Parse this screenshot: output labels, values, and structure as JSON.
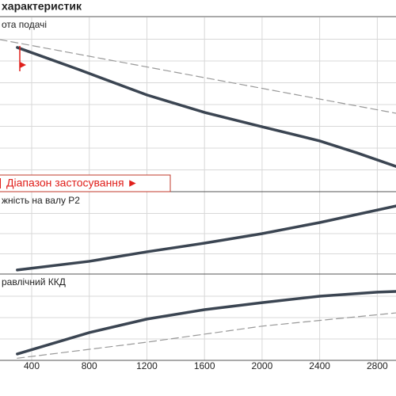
{
  "header": {
    "title": "характеристик"
  },
  "chart_data": [
    {
      "type": "line",
      "title": "ота подачі",
      "annotation": "Діапазон застосування ►",
      "xlim": [
        180,
        2930
      ],
      "ylim": [
        0,
        8
      ],
      "yticks": [
        1,
        2,
        3,
        4,
        5,
        6,
        7
      ],
      "grid": true,
      "series": [
        {
          "color": "#3b4552",
          "style": "solid",
          "x": [
            300,
            730,
            1200,
            1600,
            2000,
            2400,
            2660,
            2930
          ],
          "values": [
            6.62,
            5.6,
            4.44,
            3.64,
            2.98,
            2.33,
            1.78,
            1.16
          ]
        },
        {
          "color": "#999999",
          "style": "dashed",
          "x": [
            180,
            2930
          ],
          "values": [
            6.98,
            3.6
          ]
        }
      ]
    },
    {
      "type": "line",
      "title": "жність на валу P2",
      "xlim": [
        180,
        2930
      ],
      "ylim": [
        0,
        4
      ],
      "yticks": [
        1,
        2,
        3
      ],
      "grid": true,
      "series": [
        {
          "color": "#3b4552",
          "style": "solid",
          "x": [
            300,
            800,
            1200,
            1600,
            2000,
            2400,
            2930
          ],
          "values": [
            0.2,
            0.63,
            1.1,
            1.53,
            2.0,
            2.55,
            3.37
          ]
        }
      ]
    },
    {
      "type": "line",
      "title": "равлічний ККД",
      "xlim": [
        180,
        2930
      ],
      "ylim": [
        0,
        4
      ],
      "yticks": [
        1,
        2,
        3
      ],
      "grid": true,
      "xticks": [
        400,
        800,
        1200,
        1600,
        2000,
        2400,
        2800
      ],
      "series": [
        {
          "color": "#3b4552",
          "style": "solid",
          "x": [
            300,
            800,
            1200,
            1600,
            2000,
            2400,
            2800,
            2930
          ],
          "values": [
            0.3,
            1.3,
            1.93,
            2.37,
            2.7,
            3.0,
            3.19,
            3.22
          ]
        },
        {
          "color": "#999999",
          "style": "dashed",
          "x": [
            300,
            1200,
            2000,
            2930
          ],
          "values": [
            0.1,
            0.85,
            1.6,
            2.22
          ]
        }
      ]
    }
  ]
}
